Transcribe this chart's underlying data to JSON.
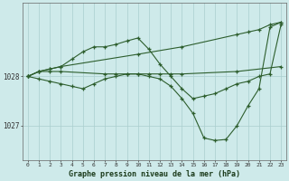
{
  "bg_color": "#ceeaea",
  "grid_color": "#aacece",
  "line_color": "#2d5e2d",
  "marker_color": "#2d5e2d",
  "xlabel": "Graphe pression niveau de la mer (hPa)",
  "xlim": [
    -0.5,
    23.5
  ],
  "ylim": [
    1026.3,
    1029.5
  ],
  "yticks": [
    1027,
    1028
  ],
  "xticks": [
    0,
    1,
    2,
    3,
    4,
    5,
    6,
    7,
    8,
    9,
    10,
    11,
    12,
    13,
    14,
    15,
    16,
    17,
    18,
    19,
    20,
    21,
    22,
    23
  ],
  "series": [
    {
      "x": [
        0,
        1,
        2,
        3,
        7,
        8,
        9,
        10,
        11,
        12,
        13,
        14,
        19,
        23
      ],
      "y": [
        1028.0,
        1028.1,
        1028.1,
        1028.1,
        1028.05,
        1028.05,
        1028.05,
        1028.05,
        1028.05,
        1028.05,
        1028.05,
        1028.05,
        1028.1,
        1028.2
      ]
    },
    {
      "x": [
        0,
        1,
        2,
        3,
        10,
        14,
        19,
        20,
        21,
        22,
        23
      ],
      "y": [
        1028.0,
        1028.1,
        1028.15,
        1028.2,
        1028.45,
        1028.6,
        1028.85,
        1028.9,
        1028.95,
        1029.05,
        1029.1
      ]
    },
    {
      "x": [
        0,
        1,
        2,
        3,
        4,
        5,
        6,
        7,
        8,
        9,
        10,
        11,
        12,
        13,
        14,
        15,
        16,
        17,
        18,
        19,
        20,
        21,
        22,
        23
      ],
      "y": [
        1028.0,
        1028.1,
        1028.15,
        1028.2,
        1028.35,
        1028.5,
        1028.6,
        1028.6,
        1028.65,
        1028.72,
        1028.78,
        1028.55,
        1028.25,
        1028.0,
        1027.75,
        1027.55,
        1027.6,
        1027.65,
        1027.75,
        1027.85,
        1027.9,
        1028.0,
        1028.05,
        1029.05
      ]
    },
    {
      "x": [
        0,
        1,
        2,
        3,
        4,
        5,
        6,
        7,
        8,
        9,
        10,
        11,
        12,
        13,
        14,
        15,
        16,
        17,
        18,
        19,
        20,
        21,
        22,
        23
      ],
      "y": [
        1028.0,
        1027.95,
        1027.9,
        1027.85,
        1027.8,
        1027.75,
        1027.85,
        1027.95,
        1028.0,
        1028.05,
        1028.05,
        1028.0,
        1027.95,
        1027.8,
        1027.55,
        1027.25,
        1026.75,
        1026.7,
        1026.72,
        1027.0,
        1027.4,
        1027.75,
        1029.0,
        1029.1
      ]
    }
  ]
}
